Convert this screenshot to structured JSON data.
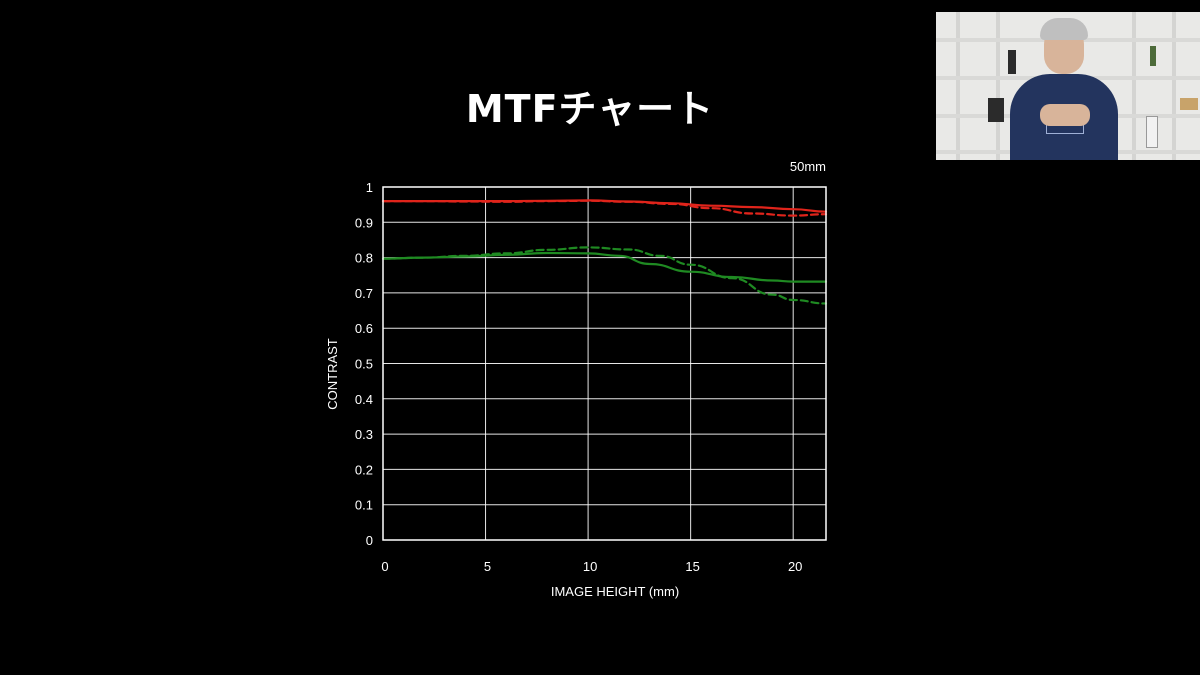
{
  "slide": {
    "title": "MTFチャート"
  },
  "chart_data": {
    "type": "line",
    "annotation": "50mm",
    "xlabel": "IMAGE HEIGHT (mm)",
    "ylabel": "CONTRAST",
    "xlim": [
      0,
      21.6
    ],
    "ylim": [
      0,
      1
    ],
    "xticks": [
      0,
      5,
      10,
      15,
      20
    ],
    "yticks": [
      0,
      0.1,
      0.2,
      0.3,
      0.4,
      0.5,
      0.6,
      0.7,
      0.8,
      0.9,
      1
    ],
    "ytick_labels": [
      "0",
      "0.1",
      "0.2",
      "0.3",
      "0.4",
      "0.5",
      "0.6",
      "0.7",
      "0.8",
      "0.9",
      "1"
    ],
    "grid": true,
    "series": [
      {
        "color": "#e0241b",
        "dash": "solid",
        "points": [
          [
            0,
            0.96
          ],
          [
            2,
            0.96
          ],
          [
            4,
            0.96
          ],
          [
            6,
            0.96
          ],
          [
            8,
            0.961
          ],
          [
            10,
            0.962
          ],
          [
            12,
            0.959
          ],
          [
            14,
            0.954
          ],
          [
            16,
            0.947
          ],
          [
            18,
            0.943
          ],
          [
            20,
            0.937
          ],
          [
            21.6,
            0.93
          ]
        ]
      },
      {
        "color": "#e0241b",
        "dash": "dashed",
        "points": [
          [
            0,
            0.96
          ],
          [
            2,
            0.96
          ],
          [
            4,
            0.959
          ],
          [
            6,
            0.958
          ],
          [
            8,
            0.96
          ],
          [
            10,
            0.961
          ],
          [
            12,
            0.958
          ],
          [
            14,
            0.952
          ],
          [
            16,
            0.94
          ],
          [
            18,
            0.925
          ],
          [
            20,
            0.919
          ],
          [
            21.6,
            0.923
          ]
        ]
      },
      {
        "color": "#1f8a22",
        "dash": "solid",
        "points": [
          [
            0,
            0.797
          ],
          [
            2,
            0.8
          ],
          [
            4,
            0.803
          ],
          [
            6,
            0.808
          ],
          [
            8,
            0.813
          ],
          [
            10,
            0.812
          ],
          [
            11.5,
            0.805
          ],
          [
            13,
            0.782
          ],
          [
            15,
            0.76
          ],
          [
            17,
            0.745
          ],
          [
            19,
            0.735
          ],
          [
            20,
            0.732
          ],
          [
            21.6,
            0.732
          ]
        ]
      },
      {
        "color": "#1f8a22",
        "dash": "dashed",
        "points": [
          [
            0,
            0.797
          ],
          [
            2,
            0.8
          ],
          [
            4,
            0.805
          ],
          [
            6,
            0.812
          ],
          [
            8,
            0.822
          ],
          [
            10,
            0.829
          ],
          [
            12,
            0.823
          ],
          [
            13.5,
            0.805
          ],
          [
            15,
            0.78
          ],
          [
            17,
            0.742
          ],
          [
            19,
            0.695
          ],
          [
            20,
            0.68
          ],
          [
            21.6,
            0.67
          ]
        ]
      }
    ]
  }
}
